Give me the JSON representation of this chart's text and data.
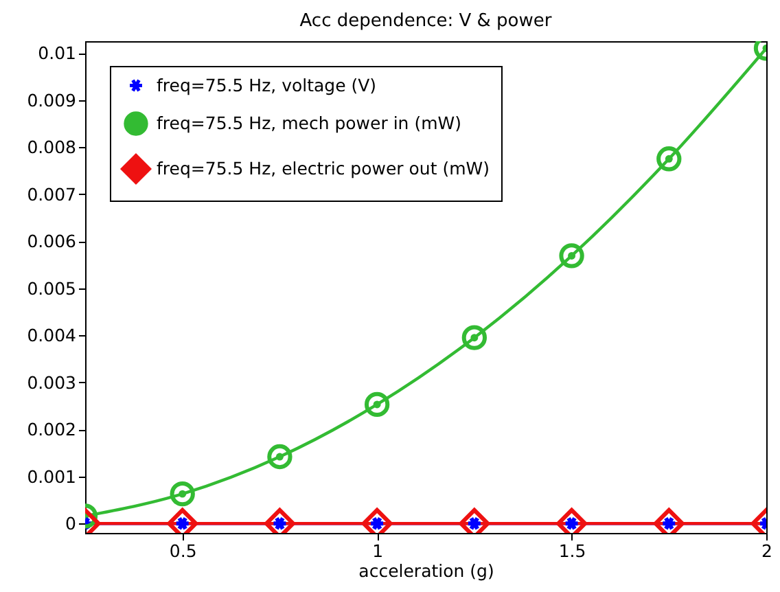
{
  "chart_data": {
    "type": "line",
    "title": "Acc dependence: V & power",
    "xlabel": "acceleration (g)",
    "x": [
      0.25,
      0.5,
      0.75,
      1,
      1.25,
      1.5,
      1.75,
      2
    ],
    "series": [
      {
        "name": "freq=75.5 Hz, voltage (V)",
        "color": "#0000ff",
        "marker": "cross",
        "values": [
          0,
          0,
          0,
          0,
          0,
          0,
          0,
          0
        ]
      },
      {
        "name": "freq=75.5 Hz, mech power in (mW)",
        "color": "#33bb33",
        "marker": "circle",
        "values": [
          0.00016,
          0.00063,
          0.00142,
          0.00253,
          0.00395,
          0.00569,
          0.00775,
          0.0101
        ]
      },
      {
        "name": "freq=75.5 Hz, electric power out (mW)",
        "color": "#ee1111",
        "marker": "diamond",
        "values": [
          0,
          0,
          0,
          0,
          0,
          0,
          0,
          0
        ]
      }
    ],
    "xlim": [
      0.25,
      2
    ],
    "xticks": [
      0.5,
      1,
      1.5,
      2
    ],
    "ylim": [
      -0.0002,
      0.01025
    ],
    "yticks": [
      0,
      0.001,
      0.002,
      0.003,
      0.004,
      0.005,
      0.006,
      0.007,
      0.008,
      0.009,
      0.01
    ],
    "grid": false,
    "legend": "top left",
    "line_style": "solid"
  }
}
